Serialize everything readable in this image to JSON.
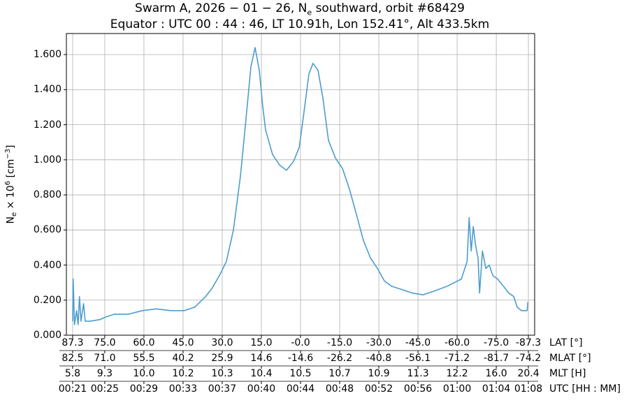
{
  "chart_data": {
    "type": "line",
    "title_line1": "Swarm A,  2026 − 01 − 26,  N",
    "title_sub": "e",
    "title_line1_rest": " southward,  orbit #68429",
    "title_line2": "Equator :  UTC 00 : 44 : 46,  LT 10.91h,  Lon 152.41°,  Alt 433.5km",
    "ylabel": "N",
    "ylabel_sub": "e",
    "ylabel_rest": " × 10",
    "ylabel_sup": "6",
    "ylabel_unit": " [cm",
    "ylabel_unit_sup": "−3",
    "ylabel_end": "]",
    "ylim": [
      0,
      1.72
    ],
    "xlim": [
      89.7,
      -89.7
    ],
    "yticks": [
      "0.000",
      "0.200",
      "0.400",
      "0.600",
      "0.800",
      "1.000",
      "1.200",
      "1.400",
      "1.600"
    ],
    "ytick_values": [
      0,
      0.2,
      0.4,
      0.6,
      0.8,
      1.0,
      1.2,
      1.4,
      1.6
    ],
    "grid": true,
    "line_color": "#4c9ccf",
    "xtick_lat_values": [
      87.3,
      75.0,
      60.0,
      45.0,
      30.0,
      15.0,
      0,
      -15.0,
      -30.0,
      -45.0,
      -60.0,
      -75.0,
      -87.3
    ],
    "x_rows": [
      {
        "label": "LAT [°]",
        "ticks": [
          "87.3",
          "75.0",
          "60.0",
          "45.0",
          "30.0",
          "15.0",
          "-0.0",
          "-15.0",
          "-30.0",
          "-45.0",
          "-60.0",
          "-75.0",
          "-87.3"
        ]
      },
      {
        "label": "MLAT [°]",
        "ticks": [
          "82.5",
          "71.0",
          "55.5",
          "40.2",
          "25.9",
          "14.6",
          "-14.6",
          "-26.2",
          "-40.8",
          "-56.1",
          "-71.2",
          "-81.7",
          "-74.2"
        ]
      },
      {
        "label": "MLT [H]",
        "ticks": [
          "5.8",
          "9.3",
          "10.0",
          "10.2",
          "10.3",
          "10.4",
          "10.5",
          "10.7",
          "10.9",
          "11.3",
          "12.2",
          "16.0",
          "20.4"
        ]
      },
      {
        "label": "UTC [HH : MM]",
        "ticks": [
          "00:21",
          "00:25",
          "00:29",
          "00:33",
          "00:37",
          "00:40",
          "00:44",
          "00:48",
          "00:52",
          "00:56",
          "01:00",
          "01:04",
          "01:08"
        ]
      }
    ],
    "series": [
      {
        "points": [
          [
            87.3,
            0.08
          ],
          [
            87.1,
            0.32
          ],
          [
            86.6,
            0.06
          ],
          [
            85.8,
            0.14
          ],
          [
            85.2,
            0.06
          ],
          [
            84.7,
            0.22
          ],
          [
            84.1,
            0.08
          ],
          [
            83.1,
            0.18
          ],
          [
            82.5,
            0.08
          ],
          [
            80.6,
            0.08
          ],
          [
            76.6,
            0.09
          ],
          [
            75.3,
            0.1
          ],
          [
            71.3,
            0.12
          ],
          [
            65.9,
            0.12
          ],
          [
            60.6,
            0.14
          ],
          [
            55.2,
            0.15
          ],
          [
            49.8,
            0.14
          ],
          [
            44.5,
            0.14
          ],
          [
            40.5,
            0.16
          ],
          [
            36.4,
            0.22
          ],
          [
            33.8,
            0.27
          ],
          [
            31.1,
            0.34
          ],
          [
            28.4,
            0.42
          ],
          [
            25.7,
            0.6
          ],
          [
            23.0,
            0.91
          ],
          [
            20.9,
            1.23
          ],
          [
            19.0,
            1.53
          ],
          [
            17.4,
            1.64
          ],
          [
            15.8,
            1.51
          ],
          [
            14.5,
            1.31
          ],
          [
            13.4,
            1.17
          ],
          [
            10.7,
            1.03
          ],
          [
            8.0,
            0.97
          ],
          [
            5.4,
            0.94
          ],
          [
            2.7,
            0.99
          ],
          [
            0.5,
            1.07
          ],
          [
            -1.3,
            1.27
          ],
          [
            -3.2,
            1.49
          ],
          [
            -4.8,
            1.55
          ],
          [
            -6.7,
            1.51
          ],
          [
            -8.6,
            1.35
          ],
          [
            -10.7,
            1.11
          ],
          [
            -13.4,
            1.01
          ],
          [
            -16.1,
            0.95
          ],
          [
            -18.8,
            0.83
          ],
          [
            -21.4,
            0.69
          ],
          [
            -24.1,
            0.54
          ],
          [
            -26.8,
            0.44
          ],
          [
            -29.5,
            0.38
          ],
          [
            -32.1,
            0.31
          ],
          [
            -34.8,
            0.28
          ],
          [
            -38.9,
            0.26
          ],
          [
            -42.9,
            0.24
          ],
          [
            -46.9,
            0.23
          ],
          [
            -50.9,
            0.25
          ],
          [
            -56.3,
            0.28
          ],
          [
            -61.6,
            0.32
          ],
          [
            -63.8,
            0.42
          ],
          [
            -64.6,
            0.67
          ],
          [
            -65.4,
            0.48
          ],
          [
            -66.2,
            0.62
          ],
          [
            -67.0,
            0.52
          ],
          [
            -68.0,
            0.44
          ],
          [
            -68.6,
            0.24
          ],
          [
            -69.7,
            0.48
          ],
          [
            -71.0,
            0.38
          ],
          [
            -72.3,
            0.4
          ],
          [
            -73.7,
            0.34
          ],
          [
            -75.5,
            0.32
          ],
          [
            -77.7,
            0.28
          ],
          [
            -79.8,
            0.24
          ],
          [
            -81.7,
            0.22
          ],
          [
            -83.0,
            0.16
          ],
          [
            -84.6,
            0.14
          ],
          [
            -86.8,
            0.14
          ],
          [
            -87.1,
            0.19
          ]
        ]
      }
    ]
  }
}
